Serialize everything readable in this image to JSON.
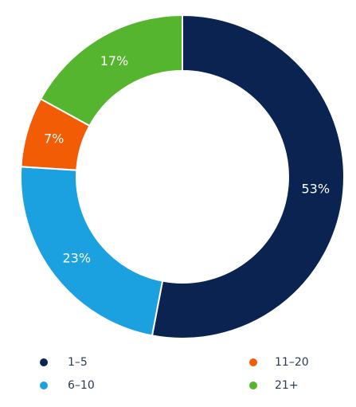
{
  "chart_data": {
    "type": "pie",
    "categories": [
      "1–5",
      "6–10",
      "11–20",
      "21+"
    ],
    "values": [
      53,
      23,
      7,
      17
    ],
    "value_labels": [
      "53%",
      "23%",
      "7%",
      "17%"
    ],
    "colors": [
      "#0a2350",
      "#1ba1e0",
      "#f25c05",
      "#55b52f"
    ]
  }
}
